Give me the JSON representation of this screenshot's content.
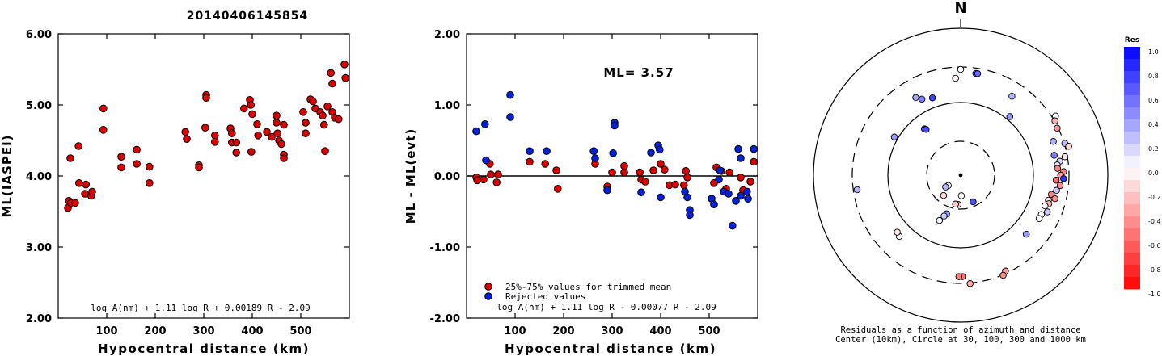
{
  "event_id": "20140406145854",
  "chart_data": [
    {
      "type": "scatter",
      "xlabel": "Hypocentral distance (km)",
      "ylabel": "ML(IASPEI)",
      "xlim": [
        0,
        600
      ],
      "ylim": [
        2.0,
        6.0
      ],
      "x_ticks": [
        "100",
        "200",
        "300",
        "400",
        "500"
      ],
      "y_ticks": [
        "2.00",
        "3.00",
        "4.00",
        "5.00",
        "6.00"
      ],
      "formula": "log A(nm) + 1.11 log R + 0.00189 R - 2.09",
      "series": [
        {
          "color": "#dd0000",
          "points": [
            [
              20,
              3.55
            ],
            [
              22,
              3.65
            ],
            [
              25,
              4.25
            ],
            [
              26,
              3.62
            ],
            [
              35,
              3.62
            ],
            [
              42,
              4.42
            ],
            [
              43,
              3.9
            ],
            [
              55,
              3.75
            ],
            [
              57,
              3.88
            ],
            [
              68,
              3.72
            ],
            [
              70,
              3.78
            ],
            [
              93,
              4.95
            ],
            [
              93,
              4.65
            ],
            [
              130,
              4.27
            ],
            [
              130,
              4.12
            ],
            [
              162,
              4.37
            ],
            [
              162,
              4.17
            ],
            [
              188,
              4.13
            ],
            [
              188,
              3.9
            ],
            [
              262,
              4.62
            ],
            [
              265,
              4.52
            ],
            [
              290,
              4.15
            ],
            [
              290,
              4.12
            ],
            [
              303,
              4.68
            ],
            [
              305,
              5.14
            ],
            [
              305,
              5.1
            ],
            [
              323,
              4.57
            ],
            [
              323,
              4.48
            ],
            [
              355,
              4.67
            ],
            [
              358,
              4.6
            ],
            [
              358,
              4.47
            ],
            [
              367,
              4.47
            ],
            [
              367,
              4.33
            ],
            [
              383,
              4.95
            ],
            [
              395,
              5.07
            ],
            [
              397,
              5.0
            ],
            [
              398,
              4.34
            ],
            [
              400,
              4.87
            ],
            [
              410,
              4.73
            ],
            [
              412,
              4.57
            ],
            [
              430,
              4.62
            ],
            [
              440,
              4.55
            ],
            [
              450,
              4.85
            ],
            [
              450,
              4.75
            ],
            [
              452,
              4.6
            ],
            [
              455,
              4.5
            ],
            [
              460,
              4.45
            ],
            [
              465,
              4.3
            ],
            [
              465,
              4.25
            ],
            [
              465,
              4.72
            ],
            [
              505,
              4.9
            ],
            [
              510,
              4.75
            ],
            [
              510,
              4.6
            ],
            [
              520,
              5.08
            ],
            [
              525,
              5.05
            ],
            [
              530,
              4.95
            ],
            [
              540,
              4.9
            ],
            [
              545,
              4.85
            ],
            [
              548,
              4.72
            ],
            [
              550,
              4.35
            ],
            [
              555,
              4.98
            ],
            [
              562,
              5.45
            ],
            [
              565,
              5.3
            ],
            [
              565,
              4.9
            ],
            [
              570,
              4.82
            ],
            [
              578,
              4.8
            ],
            [
              590,
              5.57
            ],
            [
              592,
              5.38
            ]
          ]
        }
      ]
    },
    {
      "type": "scatter",
      "xlabel": "Hypocentral distance (km)",
      "ylabel": "ML - ML(evt)",
      "xlim": [
        0,
        600
      ],
      "ylim": [
        -2.0,
        2.0
      ],
      "x_ticks": [
        "100",
        "200",
        "300",
        "400",
        "500"
      ],
      "y_ticks": [
        "-2.00",
        "-1.00",
        "0.00",
        "1.00",
        "2.00"
      ],
      "annotation": "ML= 3.57",
      "reference_line": 0,
      "formula": "log A(nm) + 1.11 log R - 0.00077 R - 2.09",
      "legend": {
        "position": "bottom-left",
        "entries": [
          {
            "label": "25%-75% values for trimmed mean",
            "color": "#dd0000"
          },
          {
            "label": "Rejected values",
            "color": "#0022dd"
          }
        ]
      },
      "series": [
        {
          "name": "25%-75% values for trimmed mean",
          "color": "#dd0000",
          "points": [
            [
              20,
              -0.02
            ],
            [
              22,
              -0.06
            ],
            [
              35,
              -0.05
            ],
            [
              48,
              0.17
            ],
            [
              50,
              0.02
            ],
            [
              62,
              -0.09
            ],
            [
              65,
              0.02
            ],
            [
              130,
              0.2
            ],
            [
              162,
              0.17
            ],
            [
              185,
              0.08
            ],
            [
              188,
              -0.18
            ],
            [
              265,
              0.17
            ],
            [
              290,
              -0.15
            ],
            [
              300,
              0.05
            ],
            [
              325,
              0.14
            ],
            [
              325,
              0.05
            ],
            [
              357,
              0.05
            ],
            [
              360,
              -0.05
            ],
            [
              368,
              -0.08
            ],
            [
              385,
              0.08
            ],
            [
              400,
              0.17
            ],
            [
              408,
              0.09
            ],
            [
              418,
              -0.13
            ],
            [
              430,
              -0.12
            ],
            [
              448,
              -0.13
            ],
            [
              452,
              0.07
            ],
            [
              455,
              -0.02
            ],
            [
              510,
              -0.1
            ],
            [
              515,
              0.12
            ],
            [
              525,
              0.07
            ],
            [
              535,
              -0.18
            ],
            [
              542,
              0.05
            ],
            [
              565,
              -0.02
            ],
            [
              570,
              -0.2
            ],
            [
              585,
              -0.08
            ],
            [
              592,
              0.2
            ]
          ]
        },
        {
          "name": "Rejected values",
          "color": "#0022dd",
          "points": [
            [
              20,
              0.63
            ],
            [
              38,
              0.73
            ],
            [
              40,
              0.22
            ],
            [
              90,
              1.14
            ],
            [
              90,
              0.83
            ],
            [
              130,
              0.35
            ],
            [
              165,
              0.35
            ],
            [
              262,
              0.35
            ],
            [
              265,
              0.25
            ],
            [
              290,
              -0.2
            ],
            [
              302,
              0.32
            ],
            [
              305,
              0.75
            ],
            [
              305,
              0.71
            ],
            [
              360,
              -0.23
            ],
            [
              380,
              0.33
            ],
            [
              395,
              0.43
            ],
            [
              398,
              0.37
            ],
            [
              400,
              -0.3
            ],
            [
              450,
              -0.22
            ],
            [
              455,
              -0.3
            ],
            [
              460,
              -0.48
            ],
            [
              460,
              -0.55
            ],
            [
              505,
              -0.32
            ],
            [
              510,
              -0.4
            ],
            [
              520,
              -0.05
            ],
            [
              522,
              0.08
            ],
            [
              530,
              -0.22
            ],
            [
              540,
              -0.25
            ],
            [
              548,
              -0.7
            ],
            [
              555,
              -0.35
            ],
            [
              560,
              0.38
            ],
            [
              565,
              0.25
            ],
            [
              565,
              -0.28
            ],
            [
              578,
              -0.22
            ],
            [
              580,
              -0.32
            ],
            [
              592,
              0.38
            ]
          ]
        }
      ]
    }
  ],
  "azimuth_plot": {
    "north_label": "N",
    "caption_line1": "Residuals as a function of azimuth and distance",
    "caption_line2": "Center (10km), Circle at 30, 100, 300 and 1000 km",
    "stations": [
      [
        0.002,
        0.72,
        0.0
      ],
      [
        8.5,
        0.7,
        0.55
      ],
      [
        9.5,
        0.7,
        0.6
      ],
      [
        -3,
        0.66,
        -0.05
      ],
      [
        -27,
        0.58,
        0.5
      ],
      [
        -30,
        0.61,
        0.35
      ],
      [
        -20,
        0.56,
        0.75
      ],
      [
        33,
        0.64,
        0.3
      ],
      [
        40,
        0.52,
        0.4
      ],
      [
        -38,
        0.4,
        0.75
      ],
      [
        -37,
        0.39,
        0.7
      ],
      [
        -60,
        0.52,
        0.4
      ],
      [
        58,
        0.76,
        0.0
      ],
      [
        60,
        0.74,
        -0.3
      ],
      [
        64,
        0.73,
        -0.4
      ],
      [
        70,
        0.67,
        0.3
      ],
      [
        73,
        0.74,
        0.25
      ],
      [
        75,
        0.76,
        -0.15
      ],
      [
        78,
        0.65,
        0.5
      ],
      [
        80,
        0.72,
        -0.1
      ],
      [
        82,
        0.68,
        0.15
      ],
      [
        84,
        0.66,
        0.1
      ],
      [
        86,
        0.66,
        -0.5
      ],
      [
        88,
        0.7,
        -0.45
      ],
      [
        90,
        0.68,
        -0.4
      ],
      [
        92,
        0.7,
        0.8
      ],
      [
        93,
        0.65,
        -0.55
      ],
      [
        96,
        0.68,
        -0.45
      ],
      [
        99,
        0.66,
        0.2
      ],
      [
        102,
        0.63,
        -0.5
      ],
      [
        104,
        0.66,
        -0.45
      ],
      [
        106,
        0.62,
        -0.1
      ],
      [
        108,
        0.63,
        -0.3
      ],
      [
        110,
        0.61,
        0.0
      ],
      [
        113,
        0.64,
        0.2
      ],
      [
        116,
        0.61,
        0.0
      ],
      [
        119,
        0.61,
        0.0
      ],
      [
        132,
        0.6,
        0.4
      ],
      [
        155,
        0.72,
        -0.4
      ],
      [
        157,
        0.74,
        -0.45
      ],
      [
        175,
        0.74,
        -0.35
      ],
      [
        179,
        0.69,
        -0.55
      ],
      [
        181,
        0.69,
        -0.5
      ],
      [
        155,
        0.2,
        0.7
      ],
      [
        178,
        0.14,
        0.0
      ],
      [
        185,
        0.2,
        -0.2
      ],
      [
        190,
        0.2,
        -0.2
      ],
      [
        200,
        0.28,
        0.4
      ],
      [
        202,
        0.3,
        0.2
      ],
      [
        205,
        0.34,
        0.05
      ],
      [
        220,
        0.18,
        -0.15
      ],
      [
        230,
        0.11,
        0.0
      ],
      [
        232,
        0.13,
        0.3
      ],
      [
        225,
        0.59,
        0.0
      ],
      [
        228,
        0.58,
        -0.1
      ],
      [
        262,
        0.71,
        0.3
      ]
    ]
  },
  "colorbar": {
    "title": "Res",
    "labels": [
      "1.0",
      "0.8",
      "0.6",
      "0.4",
      "0.2",
      "0.0",
      "-0.2",
      "-0.4",
      "-0.6",
      "-0.8",
      "-1.0"
    ]
  }
}
